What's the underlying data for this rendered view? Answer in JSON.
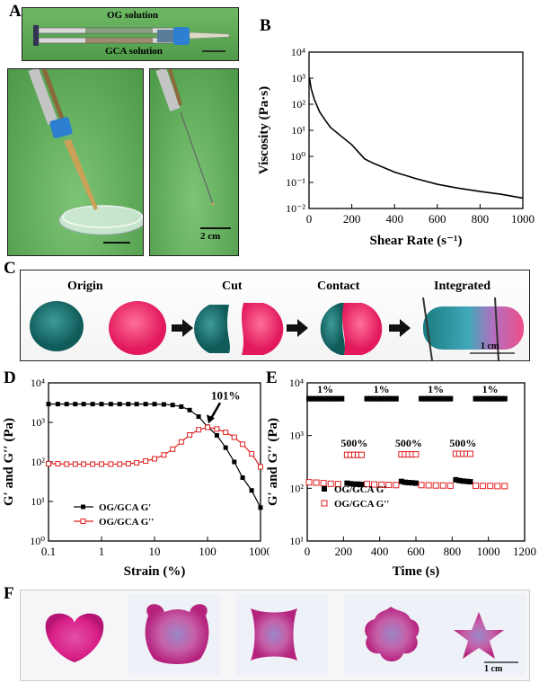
{
  "panels": {
    "A": {
      "label": "A",
      "syringe_top_label": "OG solution",
      "syringe_bottom_label": "GCA solution",
      "scale_bar": "2 cm"
    },
    "B": {
      "label": "B"
    },
    "C": {
      "label": "C",
      "stages": [
        "Origin",
        "Cut",
        "Contact",
        "Integrated"
      ],
      "scale_bar": "1 cm"
    },
    "D": {
      "label": "D",
      "annotation": "101%"
    },
    "E": {
      "label": "E",
      "strain_labels": [
        "1%",
        "500%"
      ]
    },
    "F": {
      "label": "F",
      "scale_bar": "1 cm"
    }
  },
  "chart_data": [
    {
      "id": "B",
      "type": "line",
      "xlabel": "Shear Rate (s⁻¹)",
      "ylabel": "Viscosity (Pa·s)",
      "xlim": [
        0,
        1000
      ],
      "ylim": [
        0.01,
        10000
      ],
      "yscale": "log",
      "xticks": [
        0,
        200,
        400,
        600,
        800,
        1000
      ],
      "yticks": [
        "10⁻²",
        "10⁻¹",
        "10⁰",
        "10¹",
        "10²",
        "10³",
        "10⁴"
      ],
      "x": [
        2,
        10,
        25,
        50,
        75,
        100,
        150,
        200,
        260,
        300,
        400,
        500,
        600,
        700,
        800,
        900,
        1000
      ],
      "y": [
        1000,
        400,
        150,
        50,
        25,
        13,
        6,
        2.8,
        0.8,
        0.55,
        0.25,
        0.14,
        0.085,
        0.06,
        0.045,
        0.035,
        0.025
      ]
    },
    {
      "id": "D",
      "type": "line",
      "xlabel": "Strain (%)",
      "ylabel": "G′ and G′′ (Pa)",
      "xscale": "log",
      "yscale": "log",
      "xlim": [
        0.1,
        1000
      ],
      "ylim": [
        1,
        10000
      ],
      "xticks": [
        "0.1",
        "1",
        "10",
        "100",
        "1000"
      ],
      "yticks": [
        "10⁰",
        "10¹",
        "10²",
        "10³",
        "10⁴"
      ],
      "legend_position": "bottom-left",
      "series": [
        {
          "name": "OG/GCA G′",
          "marker": "filled-square",
          "color": "#000000",
          "x": [
            0.1,
            0.15,
            0.22,
            0.32,
            0.46,
            0.68,
            1,
            1.5,
            2.2,
            3.2,
            4.6,
            6.8,
            10,
            15,
            22,
            32,
            46,
            68,
            100,
            150,
            220,
            320,
            460,
            680,
            1000
          ],
          "y": [
            2900,
            2900,
            2900,
            2900,
            2900,
            2900,
            2900,
            2900,
            2900,
            2900,
            2900,
            2900,
            2900,
            2850,
            2750,
            2500,
            2050,
            1400,
            780,
            470,
            230,
            100,
            40,
            19,
            7
          ]
        },
        {
          "name": "OG/GCA G′′",
          "marker": "open-square",
          "color": "#e02020",
          "x": [
            0.1,
            0.15,
            0.22,
            0.32,
            0.46,
            0.68,
            1,
            1.5,
            2.2,
            3.2,
            4.6,
            6.8,
            10,
            15,
            22,
            32,
            46,
            68,
            100,
            150,
            220,
            320,
            460,
            680,
            1000
          ],
          "y": [
            90,
            90,
            88,
            88,
            88,
            88,
            88,
            88,
            88,
            90,
            95,
            105,
            120,
            150,
            210,
            320,
            480,
            650,
            750,
            680,
            560,
            420,
            280,
            160,
            75
          ]
        }
      ]
    },
    {
      "id": "E",
      "type": "scatter",
      "xlabel": "Time (s)",
      "ylabel": "G′ and G′′ (Pa)",
      "yscale": "log",
      "xlim": [
        0,
        1200
      ],
      "ylim": [
        10,
        10000
      ],
      "xticks": [
        0,
        200,
        400,
        600,
        800,
        1000,
        1200
      ],
      "yticks": [
        "10¹",
        "10²",
        "10³",
        "10⁴"
      ],
      "legend_position": "bottom-left",
      "series": [
        {
          "name": "OG/GCA G′",
          "marker": "filled-square",
          "color": "#000000",
          "x": [
            10,
            30,
            50,
            70,
            90,
            110,
            130,
            150,
            170,
            190,
            220,
            240,
            260,
            280,
            300,
            330,
            350,
            370,
            390,
            410,
            430,
            450,
            470,
            490,
            520,
            540,
            560,
            580,
            600,
            630,
            650,
            670,
            690,
            710,
            730,
            750,
            770,
            790,
            820,
            840,
            860,
            880,
            900,
            930,
            950,
            970,
            990,
            1010,
            1030,
            1050,
            1070,
            1090
          ],
          "y": [
            5000,
            5000,
            5000,
            5000,
            5000,
            5000,
            5000,
            5000,
            5000,
            5000,
            125,
            122,
            120,
            120,
            118,
            5000,
            5000,
            5000,
            5000,
            5000,
            5000,
            5000,
            5000,
            5000,
            135,
            130,
            128,
            127,
            125,
            5000,
            5000,
            5000,
            5000,
            5000,
            5000,
            5000,
            5000,
            5000,
            145,
            140,
            137,
            135,
            133,
            5000,
            5000,
            5000,
            5000,
            5000,
            5000,
            5000,
            5000,
            5000
          ]
        },
        {
          "name": "OG/GCA G′′",
          "marker": "open-square",
          "color": "#e02020",
          "x": [
            10,
            50,
            90,
            130,
            170,
            220,
            240,
            260,
            280,
            300,
            330,
            370,
            410,
            450,
            490,
            520,
            540,
            560,
            580,
            600,
            630,
            670,
            710,
            750,
            790,
            820,
            840,
            860,
            880,
            900,
            930,
            970,
            1010,
            1050,
            1090
          ],
          "y": [
            130,
            128,
            125,
            122,
            120,
            430,
            430,
            430,
            430,
            430,
            120,
            118,
            117,
            116,
            115,
            440,
            440,
            440,
            440,
            440,
            115,
            114,
            113,
            113,
            112,
            450,
            450,
            450,
            450,
            450,
            112,
            111,
            111,
            110,
            110
          ]
        }
      ]
    }
  ]
}
